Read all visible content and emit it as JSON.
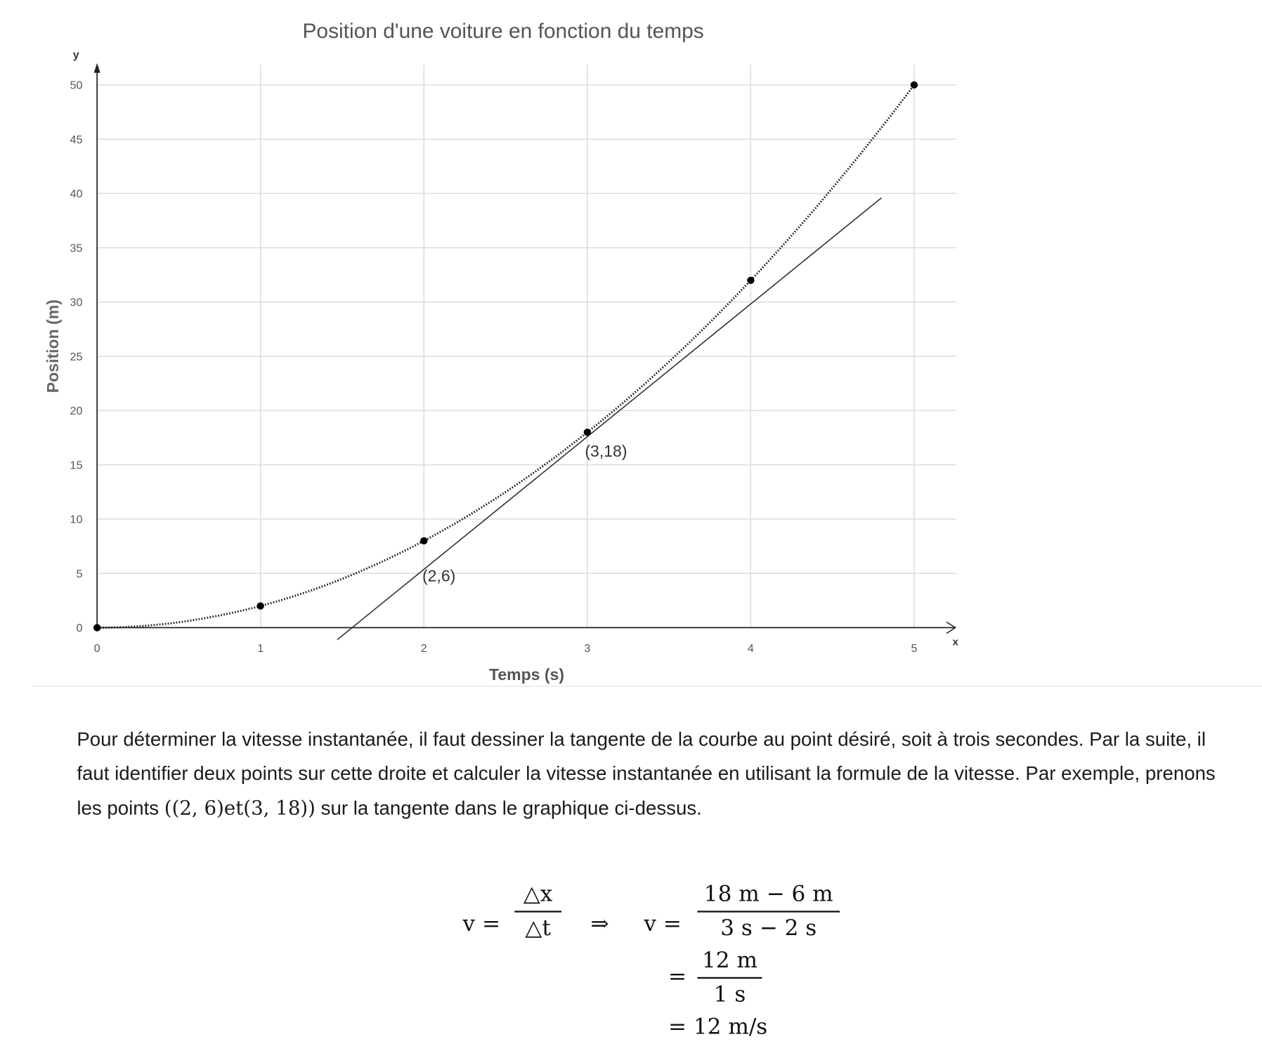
{
  "chart_data": {
    "type": "scatter",
    "title": "Position d'une voiture en fonction du temps",
    "xlabel": "Temps (s)",
    "ylabel": "Position (m)",
    "x_axis_name": "x",
    "y_axis_name": "y",
    "xlim": [
      0,
      5
    ],
    "ylim": [
      0,
      50
    ],
    "x_ticks": [
      "0",
      "1",
      "2",
      "3",
      "4",
      "5"
    ],
    "y_ticks": [
      "0",
      "5",
      "10",
      "15",
      "20",
      "25",
      "30",
      "35",
      "40",
      "45",
      "50"
    ],
    "grid": true,
    "legend": "none",
    "series": [
      {
        "style": "dotted-curve-with-markers",
        "x": [
          0,
          1,
          2,
          3,
          4,
          5
        ],
        "y": [
          0,
          2,
          8,
          18,
          32,
          50
        ]
      }
    ],
    "tangent_line": {
      "slope": 12,
      "intercept": -18,
      "x_range": [
        1.47,
        4.8
      ]
    },
    "annotations": [
      {
        "text": "(2,6)",
        "x": 2,
        "y": 6
      },
      {
        "text": "(3,18)",
        "x": 3,
        "y": 18
      }
    ]
  },
  "text": {
    "paragraph_1": "Pour déterminer la vitesse instantanée, il faut dessiner la tangente de la courbe au point désiré, soit à trois secondes. Par la suite, il faut identifier deux points sur cette droite et calculer la vitesse instantanée en utilisant la formule de la vitesse. Par exemple, prenons les points ",
    "math_points": "((2, 6)et(3, 18))",
    "paragraph_2": " sur la tangente dans le graphique ci-dessus."
  },
  "equation": {
    "lhs1": "v =",
    "frac1_num": "△x",
    "frac1_den": "△t",
    "implies": "⇒",
    "lhs2": "v =",
    "frac2_num": "18 m − 6 m",
    "frac2_den": "3 s − 2 s",
    "eq3": "=",
    "frac3_num": "12 m",
    "frac3_den": "1 s",
    "result": "= 12 m/s"
  }
}
